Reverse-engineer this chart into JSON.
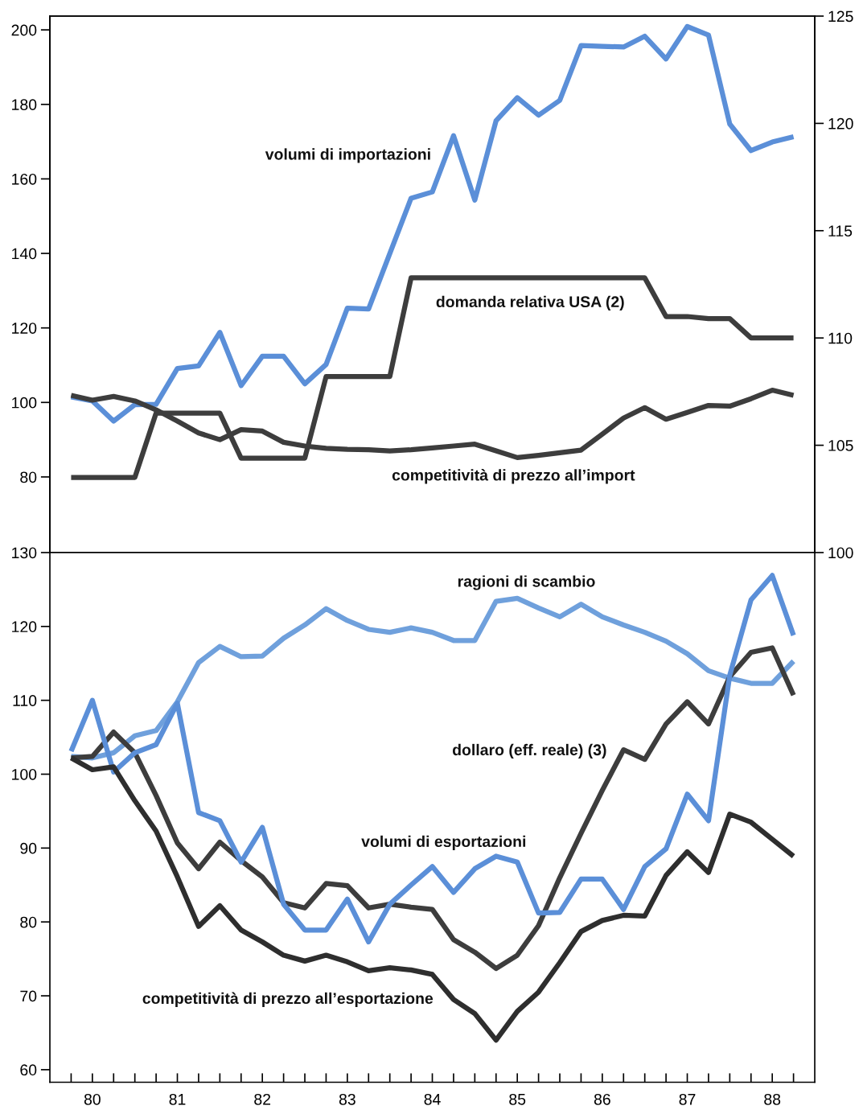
{
  "chart_data": [
    {
      "type": "line",
      "x": [
        79.75,
        80.0,
        80.25,
        80.5,
        80.75,
        81.0,
        81.25,
        81.5,
        81.75,
        82.0,
        82.25,
        82.5,
        82.75,
        83.0,
        83.25,
        83.5,
        83.75,
        84.0,
        84.25,
        84.5,
        84.75,
        85.0,
        85.25,
        85.5,
        85.75,
        86.0,
        86.25,
        86.5,
        86.75,
        87.0,
        87.25,
        87.5,
        87.75,
        88.0,
        88.25
      ],
      "xlim": [
        79.5,
        88.5
      ],
      "ylim": [
        59.7,
        203.7
      ],
      "yticks": [
        80,
        100,
        120,
        140,
        160,
        180,
        200
      ],
      "y2lim": [
        100,
        125
      ],
      "y2ticks": [
        100,
        105,
        110,
        115,
        120,
        125
      ],
      "tick_labels": "y",
      "xticks": [
        80,
        81,
        82,
        83,
        84,
        85,
        86,
        87,
        88
      ],
      "series": [
        {
          "name": "volumi di importazioni",
          "color": "#5b8fd8",
          "values": [
            101.5,
            100.4,
            95.0,
            99.4,
            99.5,
            109.1,
            109.8,
            118.8,
            104.5,
            112.4,
            112.4,
            105.0,
            110.2,
            125.3,
            125.1,
            140.0,
            154.8,
            156.5,
            171.6,
            154.3,
            175.6,
            181.8,
            177.1,
            181.1,
            195.8,
            195.6,
            195.4,
            198.3,
            192.2,
            200.9,
            198.6,
            174.7,
            167.6,
            169.9,
            171.3
          ]
        },
        {
          "name": "domanda relativa USA (2)",
          "color": "#3d3d3d",
          "axis": "y2",
          "values": [
            103.5,
            103.5,
            103.5,
            103.5,
            106.5,
            106.5,
            106.5,
            106.5,
            104.4,
            104.4,
            104.4,
            104.4,
            108.2,
            108.2,
            108.2,
            108.2,
            112.8,
            112.8,
            112.8,
            112.8,
            112.8,
            112.8,
            112.8,
            112.8,
            112.8,
            112.8,
            112.8,
            112.8,
            111.0,
            111.0,
            110.9,
            110.9,
            110.0,
            110.0,
            110.0
          ]
        },
        {
          "name": "competitività di prezzo all’import",
          "color": "#3d3d3d",
          "values": [
            101.9,
            100.6,
            101.6,
            100.4,
            98.0,
            95.0,
            91.8,
            90.0,
            92.7,
            92.3,
            89.3,
            88.3,
            87.7,
            87.4,
            87.3,
            87.0,
            87.3,
            87.8,
            88.3,
            88.8,
            87.0,
            85.2,
            85.8,
            86.5,
            87.2,
            91.5,
            95.8,
            98.6,
            95.5,
            97.3,
            99.2,
            99.0,
            101.0,
            103.3,
            101.9
          ]
        }
      ]
    },
    {
      "type": "line",
      "x": [
        79.75,
        80.0,
        80.25,
        80.5,
        80.75,
        81.0,
        81.25,
        81.5,
        81.75,
        82.0,
        82.25,
        82.5,
        82.75,
        83.0,
        83.25,
        83.5,
        83.75,
        84.0,
        84.25,
        84.5,
        84.75,
        85.0,
        85.25,
        85.5,
        85.75,
        86.0,
        86.25,
        86.5,
        86.75,
        87.0,
        87.25,
        87.5,
        87.75,
        88.0,
        88.25
      ],
      "xlim": [
        79.5,
        88.5
      ],
      "ylim": [
        58.3,
        130
      ],
      "yticks": [
        60,
        70,
        80,
        90,
        100,
        110,
        120,
        130
      ],
      "xticks": [
        {
          "value": 79.75,
          "label": null
        },
        80,
        {
          "value": 80.25,
          "label": null
        },
        {
          "value": 80.5,
          "label": null
        },
        {
          "value": 80.75,
          "label": null
        },
        81,
        {
          "value": 81.25,
          "label": null
        },
        {
          "value": 81.5,
          "label": null
        },
        {
          "value": 81.75,
          "label": null
        },
        82,
        {
          "value": 82.25,
          "label": null
        },
        {
          "value": 82.5,
          "label": null
        },
        {
          "value": 82.75,
          "label": null
        },
        83,
        {
          "value": 83.25,
          "label": null
        },
        {
          "value": 83.5,
          "label": null
        },
        {
          "value": 83.75,
          "label": null
        },
        84,
        {
          "value": 84.25,
          "label": null
        },
        {
          "value": 84.5,
          "label": null
        },
        {
          "value": 84.75,
          "label": null
        },
        85,
        {
          "value": 85.25,
          "label": null
        },
        {
          "value": 85.5,
          "label": null
        },
        {
          "value": 85.75,
          "label": null
        },
        86,
        {
          "value": 86.25,
          "label": null
        },
        {
          "value": 86.5,
          "label": null
        },
        {
          "value": 86.75,
          "label": null
        },
        87,
        {
          "value": 87.25,
          "label": null
        },
        {
          "value": 87.5,
          "label": null
        },
        {
          "value": 87.75,
          "label": null
        },
        88,
        {
          "value": 88.25,
          "label": null
        }
      ],
      "series": [
        {
          "name": "ragioni di scambio",
          "color": "#6fa0dc",
          "values": [
            102.4,
            102.2,
            102.9,
            105.2,
            105.9,
            109.8,
            115.1,
            117.3,
            115.9,
            116.0,
            118.4,
            120.2,
            122.4,
            120.8,
            119.6,
            119.2,
            119.8,
            119.2,
            118.1,
            118.1,
            123.4,
            123.8,
            122.5,
            121.3,
            123.0,
            121.3,
            120.2,
            119.2,
            118.0,
            116.3,
            114.0,
            113.0,
            112.3,
            112.3,
            115.3
          ]
        },
        {
          "name": "dollaro (eff. reale) (3)",
          "color": "#3d3d3d",
          "values": [
            102.2,
            102.4,
            105.7,
            102.9,
            97.1,
            90.7,
            87.2,
            90.8,
            88.3,
            86.1,
            82.6,
            81.9,
            85.2,
            84.9,
            81.9,
            82.4,
            82.0,
            81.7,
            77.6,
            75.9,
            73.7,
            75.5,
            79.5,
            86.0,
            92.0,
            97.8,
            103.3,
            102.0,
            106.8,
            109.8,
            106.8,
            113.2,
            116.5,
            117.1,
            110.7
          ]
        },
        {
          "name": "volumi di esportazioni",
          "color": "#5b8fd8",
          "values": [
            103.1,
            110.0,
            100.3,
            102.9,
            104.0,
            109.6,
            94.8,
            93.7,
            88.1,
            92.8,
            82.4,
            78.9,
            78.9,
            83.1,
            77.3,
            82.4,
            85.0,
            87.5,
            84.0,
            87.2,
            88.9,
            88.1,
            81.2,
            81.3,
            85.8,
            85.8,
            81.7,
            87.5,
            89.9,
            97.3,
            93.7,
            113.4,
            123.6,
            126.9,
            118.8
          ]
        },
        {
          "name": "competitività di prezzo all’esportazione",
          "color": "#2e2e2e",
          "values": [
            102.2,
            100.6,
            101.0,
            96.4,
            92.3,
            86.1,
            79.4,
            82.2,
            78.9,
            77.3,
            75.5,
            74.7,
            75.5,
            74.6,
            73.4,
            73.8,
            73.5,
            72.9,
            69.5,
            67.6,
            64.0,
            67.9,
            70.5,
            74.5,
            78.7,
            80.2,
            80.9,
            80.8,
            86.3,
            89.5,
            86.7,
            94.6,
            93.5,
            91.2,
            88.9
          ]
        }
      ]
    }
  ]
}
